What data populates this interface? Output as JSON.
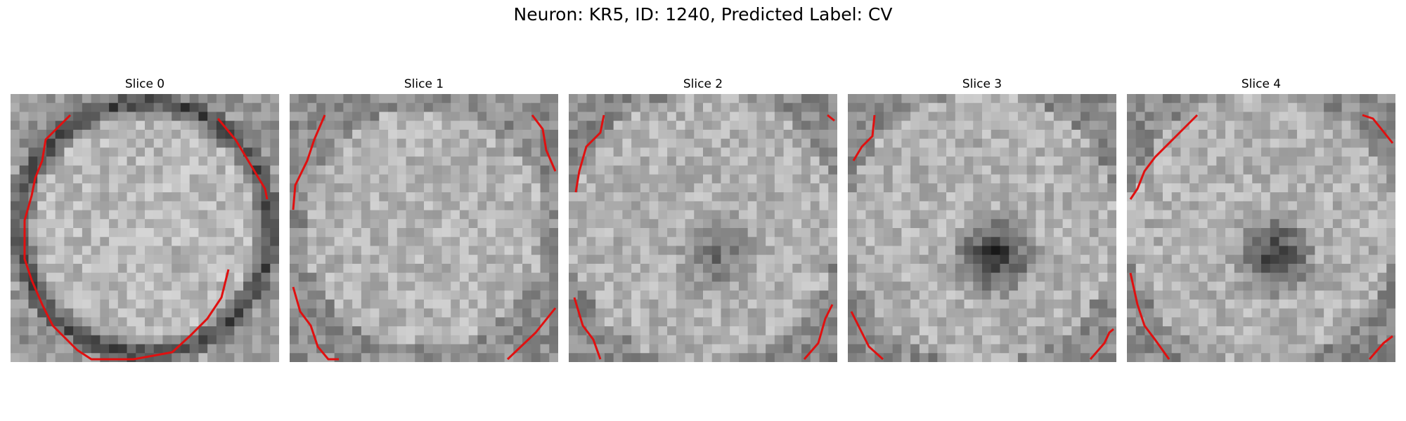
{
  "figure": {
    "title": "Neuron: KR5, ID: 1240, Predicted Label: CV"
  },
  "panels": [
    {
      "title": "Slice 0",
      "kind": "ring"
    },
    {
      "title": "Slice 1",
      "kind": "uniform"
    },
    {
      "title": "Slice 2",
      "kind": "blob-faint"
    },
    {
      "title": "Slice 3",
      "kind": "blob-dark"
    },
    {
      "title": "Slice 4",
      "kind": "blob-mid"
    }
  ],
  "colors": {
    "contour": "#e01010",
    "background": "#ffffff"
  }
}
